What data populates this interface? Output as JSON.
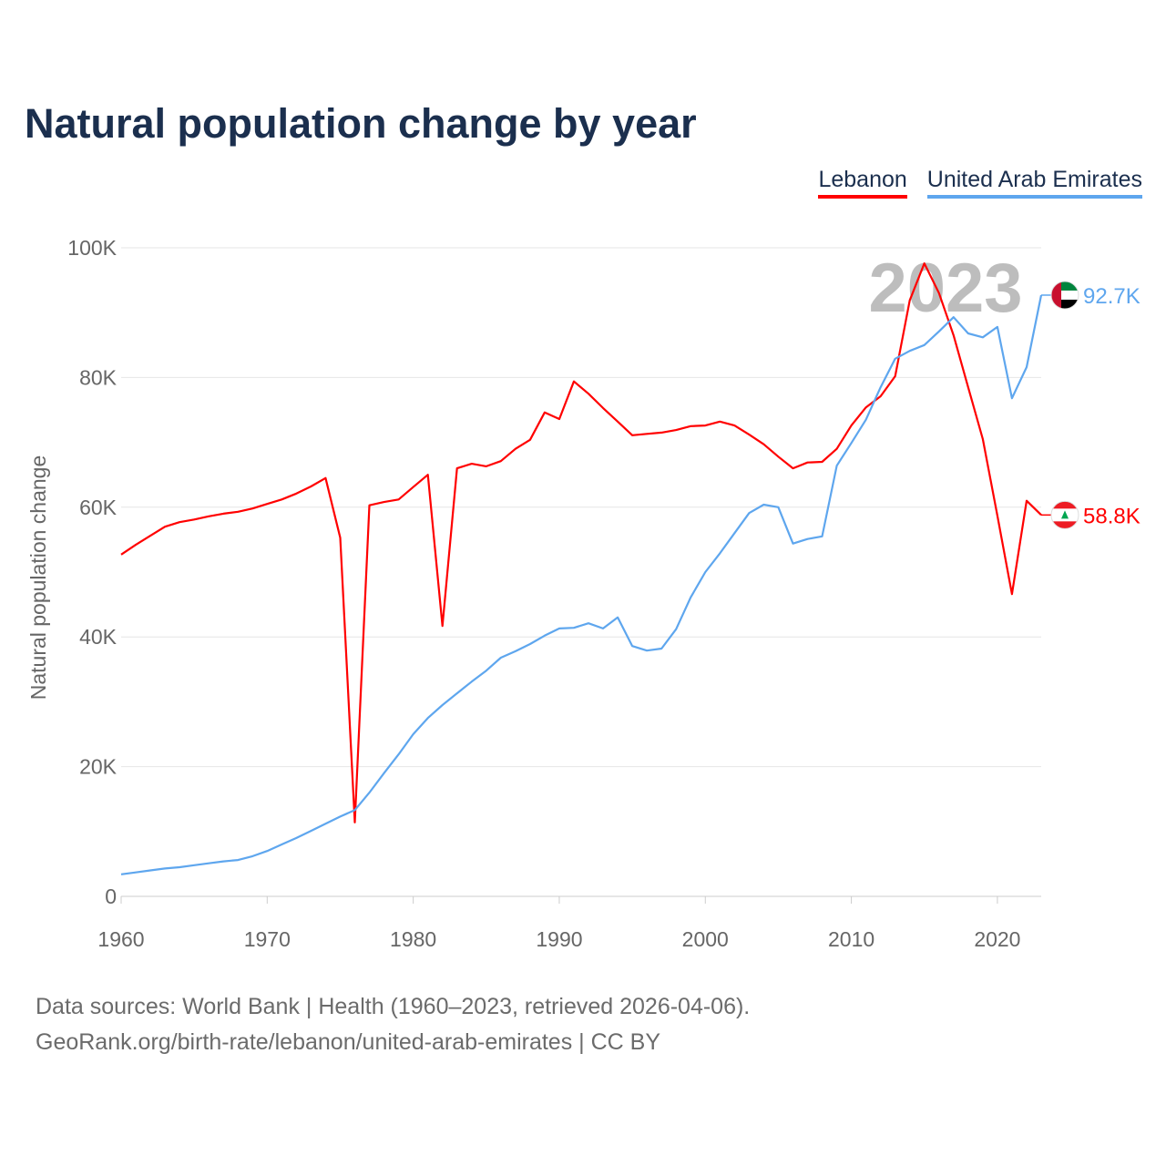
{
  "title": "Natural population change by year",
  "footer": {
    "line1": "Data sources: World Bank | Health (1960–2023, retrieved 2026-04-06).",
    "line2": "GeoRank.org/birth-rate/lebanon/united-arab-emirates | CC BY"
  },
  "chart_data": {
    "type": "line",
    "title": "Natural population change by year",
    "xlabel": "",
    "ylabel": "Natural population change",
    "xlim": [
      1960,
      2023
    ],
    "ylim": [
      0,
      100000
    ],
    "x_ticks": [
      "1960",
      "1970",
      "1980",
      "1990",
      "2000",
      "2010",
      "2020"
    ],
    "y_ticks": [
      {
        "v": 0,
        "label": "0"
      },
      {
        "v": 20000,
        "label": "20K"
      },
      {
        "v": 40000,
        "label": "40K"
      },
      {
        "v": 60000,
        "label": "60K"
      },
      {
        "v": 80000,
        "label": "80K"
      },
      {
        "v": 100000,
        "label": "100K"
      }
    ],
    "grid": true,
    "legend_position": "top-right",
    "year_label": "2023",
    "x": [
      1960,
      1961,
      1962,
      1963,
      1964,
      1965,
      1966,
      1967,
      1968,
      1969,
      1970,
      1971,
      1972,
      1973,
      1974,
      1975,
      1976,
      1977,
      1978,
      1979,
      1980,
      1981,
      1982,
      1983,
      1984,
      1985,
      1986,
      1987,
      1988,
      1989,
      1990,
      1991,
      1992,
      1993,
      1994,
      1995,
      1996,
      1997,
      1998,
      1999,
      2000,
      2001,
      2002,
      2003,
      2004,
      2005,
      2006,
      2007,
      2008,
      2009,
      2010,
      2011,
      2012,
      2013,
      2014,
      2015,
      2016,
      2017,
      2018,
      2019,
      2020,
      2021,
      2022,
      2023
    ],
    "series": [
      {
        "name": "Lebanon",
        "color": "#ff0000",
        "end_label": "58.8K",
        "values": [
          52.7,
          54.2,
          55.6,
          57.0,
          57.7,
          58.1,
          58.6,
          59.0,
          59.3,
          59.8,
          60.5,
          61.2,
          62.1,
          63.2,
          64.5,
          55.3,
          11.4,
          60.3,
          60.8,
          61.2,
          63.1,
          65.0,
          41.7,
          66.0,
          66.7,
          66.3,
          67.1,
          69.0,
          70.4,
          74.6,
          73.6,
          79.4,
          77.5,
          75.3,
          73.2,
          71.1,
          71.3,
          71.5,
          71.9,
          72.5,
          72.6,
          73.2,
          72.6,
          71.2,
          69.7,
          67.8,
          66.0,
          66.9,
          67.0,
          69.0,
          72.6,
          75.4,
          77.1,
          80.2,
          91.9,
          97.6,
          93.0,
          86.5,
          78.5,
          70.5,
          58.7,
          46.6,
          61.0,
          58.8
        ]
      },
      {
        "name": "United Arab Emirates",
        "color": "#5ea6ee",
        "end_label": "92.7K",
        "values": [
          3.4,
          3.7,
          4.0,
          4.3,
          4.5,
          4.8,
          5.1,
          5.4,
          5.6,
          6.2,
          7.0,
          8.0,
          9.0,
          10.1,
          11.2,
          12.3,
          13.3,
          16.0,
          19.0,
          21.9,
          25.0,
          27.5,
          29.5,
          31.3,
          33.1,
          34.8,
          36.8,
          37.8,
          38.9,
          40.2,
          41.3,
          41.4,
          42.1,
          41.3,
          43.0,
          38.6,
          37.9,
          38.2,
          41.2,
          46.1,
          50.0,
          52.9,
          56.0,
          59.1,
          60.4,
          60.0,
          54.4,
          55.1,
          55.5,
          66.4,
          69.9,
          73.5,
          78.5,
          82.9,
          84.1,
          85.0,
          87.1,
          89.3,
          86.8,
          86.2,
          87.8,
          76.8,
          81.6,
          92.7
        ]
      }
    ],
    "value_unit": "thousands"
  }
}
